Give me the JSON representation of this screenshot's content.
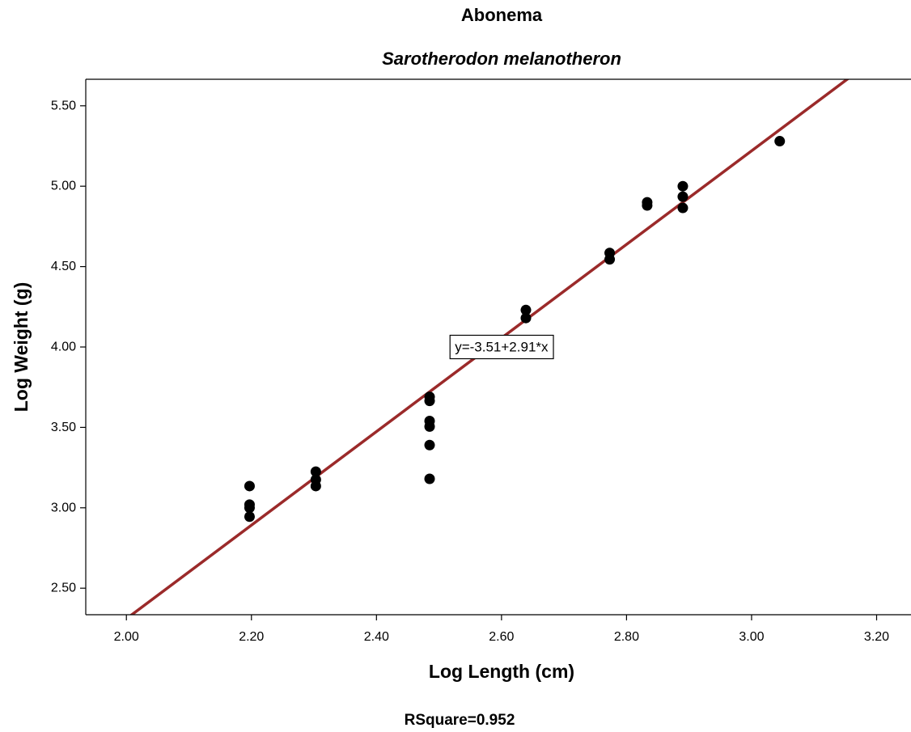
{
  "chart_data": {
    "type": "scatter",
    "title": "Abonema",
    "subtitle": "Sarotherodon melanotheron",
    "xlabel": "Log Length (cm)",
    "ylabel": "Log Weight (g)",
    "xlim": [
      1.935,
      3.255
    ],
    "ylim": [
      2.335,
      5.665
    ],
    "xticks": [
      2.0,
      2.2,
      2.4,
      2.6,
      2.8,
      3.0,
      3.2
    ],
    "xtick_labels": [
      "2.00",
      "2.20",
      "2.40",
      "2.60",
      "2.80",
      "3.00",
      "3.20"
    ],
    "yticks": [
      2.5,
      3.0,
      3.5,
      4.0,
      4.5,
      5.0,
      5.5
    ],
    "ytick_labels": [
      "2.50",
      "3.00",
      "3.50",
      "4.00",
      "4.50",
      "5.00",
      "5.50"
    ],
    "grid": false,
    "series": [
      {
        "points": [
          {
            "x": 2.197,
            "y": 3.135
          },
          {
            "x": 2.197,
            "y": 3.02
          },
          {
            "x": 2.197,
            "y": 3.0
          },
          {
            "x": 2.197,
            "y": 2.945
          },
          {
            "x": 2.303,
            "y": 3.225
          },
          {
            "x": 2.303,
            "y": 3.175
          },
          {
            "x": 2.303,
            "y": 3.135
          },
          {
            "x": 2.485,
            "y": 3.69
          },
          {
            "x": 2.485,
            "y": 3.665
          },
          {
            "x": 2.485,
            "y": 3.54
          },
          {
            "x": 2.485,
            "y": 3.505
          },
          {
            "x": 2.485,
            "y": 3.39
          },
          {
            "x": 2.485,
            "y": 3.18
          },
          {
            "x": 2.639,
            "y": 4.23
          },
          {
            "x": 2.639,
            "y": 4.18
          },
          {
            "x": 2.773,
            "y": 4.585
          },
          {
            "x": 2.773,
            "y": 4.545
          },
          {
            "x": 2.833,
            "y": 4.9
          },
          {
            "x": 2.833,
            "y": 4.88
          },
          {
            "x": 2.89,
            "y": 5.0
          },
          {
            "x": 2.89,
            "y": 4.935
          },
          {
            "x": 2.89,
            "y": 4.865
          },
          {
            "x": 3.045,
            "y": 5.28
          }
        ],
        "color": "#000000"
      }
    ],
    "fit_line": {
      "intercept": -3.51,
      "slope": 2.91,
      "color": "#9b2a2a"
    },
    "annotations": {
      "equation": "y=-3.51+2.91*x",
      "equation_at": {
        "x": 2.6,
        "y": 4.0
      },
      "rsquare": "RSquare=0.952"
    }
  }
}
